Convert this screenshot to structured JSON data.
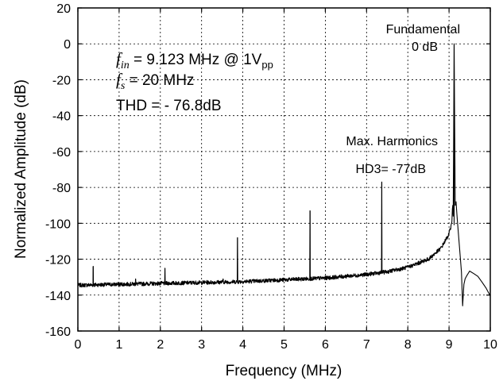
{
  "chart_data": {
    "type": "line",
    "xlabel": "Frequency (MHz)",
    "ylabel": "Normalized Amplitude (dB)",
    "xlim": [
      0,
      10
    ],
    "ylim": [
      -160,
      20
    ],
    "xticks": [
      "0",
      "1",
      "2",
      "3",
      "4",
      "5",
      "6",
      "7",
      "8",
      "9",
      "10"
    ],
    "yticks": [
      "20",
      "0",
      "-20",
      "-40",
      "-60",
      "-80",
      "-100",
      "-120",
      "-140",
      "-160"
    ],
    "grid": true,
    "params": {
      "fin_symbol": "f",
      "fin_sub": "in",
      "fin_text": " = 9.123 MHz @ 1V",
      "fin_unit_sub": "pp",
      "fs_symbol": "f",
      "fs_sub": "s",
      "fs_text": " = 20 MHz",
      "thd_text": "THD = - 76.8dB"
    },
    "annotations": {
      "fundamental_title": "Fundamental",
      "fundamental_value": "0 dB",
      "harmonic_title": "Max. Harmonics",
      "harmonic_value": "HD3= -77dB"
    },
    "noise_floor": {
      "x": [
        0,
        1,
        2,
        3,
        4,
        5,
        6,
        7,
        7.5,
        8,
        8.5,
        8.8,
        9.0,
        9.05
      ],
      "y": [
        -134.5,
        -134,
        -133.5,
        -133,
        -132.5,
        -131.5,
        -130.5,
        -128.5,
        -127,
        -124.5,
        -120,
        -114,
        -106,
        -101
      ]
    },
    "peaks": [
      {
        "x": 0.37,
        "y": -124
      },
      {
        "x": 1.4,
        "y": -131
      },
      {
        "x": 2.11,
        "y": -125
      },
      {
        "x": 3.52,
        "y": -131
      },
      {
        "x": 3.87,
        "y": -108
      },
      {
        "x": 5.63,
        "y": -93
      },
      {
        "x": 7.37,
        "y": -77
      },
      {
        "x": 9.123,
        "y": 0
      }
    ],
    "high_tail": {
      "x": [
        9.2,
        9.3,
        9.33,
        9.36,
        9.39,
        9.42,
        9.5,
        9.6,
        9.7,
        9.8,
        9.9,
        10.0
      ],
      "y": [
        -98,
        -127,
        -146,
        -134,
        -131,
        -129,
        -127,
        -128,
        -130,
        -133,
        -136,
        -140
      ]
    }
  }
}
